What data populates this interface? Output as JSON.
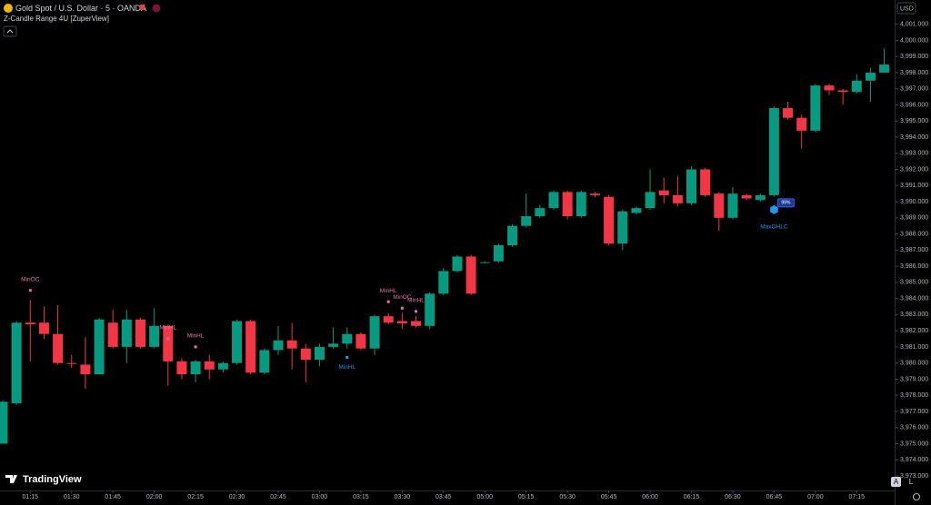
{
  "chart_data": {
    "type": "candlestick",
    "title": "Gold Spot / U.S. Dollar · 5 · OANDA",
    "subtitle": "Z-Candle Range 4U [ZuperView]",
    "currency": "USD",
    "brand": "TradingView",
    "scale_buttons": [
      "A",
      "L"
    ],
    "up_color": "#089981",
    "down_color": "#f23645",
    "categories": [
      null,
      null,
      "01:15",
      null,
      null,
      "01:30",
      null,
      null,
      "01:45",
      null,
      null,
      "02:00",
      null,
      null,
      "02:15",
      null,
      null,
      "02:30",
      null,
      null,
      "02:45",
      null,
      null,
      "03:00",
      null,
      null,
      "03:15",
      null,
      null,
      "03:30",
      null,
      null,
      "03:45",
      null,
      null,
      "05:00",
      null,
      null,
      "05:15",
      null,
      null,
      "05:30",
      null,
      null,
      "05:45",
      null,
      null,
      "06:00",
      null,
      null,
      "06:15",
      null,
      null,
      "06:30",
      null,
      null,
      "06:45",
      null,
      null,
      "07:00",
      null,
      null,
      "07:15",
      null,
      null
    ],
    "open": [
      3975.0,
      3977.5,
      3982.5,
      3982.5,
      3981.8,
      3980.0,
      3979.9,
      3979.3,
      3982.5,
      3981.0,
      3982.7,
      3981.0,
      3982.3,
      3980.1,
      3979.3,
      3980.1,
      3979.6,
      3980.0,
      3982.6,
      3979.4,
      3980.8,
      3981.4,
      3980.9,
      3980.2,
      3981.0,
      3981.2,
      3981.8,
      3980.9,
      3982.9,
      3982.6,
      3982.6,
      3982.3,
      3984.3,
      3985.7,
      3986.6,
      3986.2,
      3986.3,
      3987.3,
      3988.5,
      3989.1,
      3989.6,
      3990.6,
      3989.1,
      3990.5,
      3990.3,
      3987.4,
      3989.3,
      3989.6,
      3990.7,
      3990.4,
      3989.9,
      3992.0,
      3990.5,
      3989.0,
      3990.4,
      3990.1,
      3990.4,
      3995.8,
      3995.2,
      3994.4,
      3997.2,
      3996.9,
      3996.8,
      3997.5,
      3998.0
    ],
    "high": [
      3977.7,
      3982.6,
      3983.9,
      3983.5,
      3983.6,
      3980.5,
      3981.6,
      3982.8,
      3983.3,
      3983.3,
      3982.8,
      3983.4,
      3982.4,
      3980.3,
      3980.2,
      3980.5,
      3980.1,
      3982.7,
      3982.7,
      3980.9,
      3982.3,
      3982.5,
      3981.2,
      3981.2,
      3982.2,
      3982.2,
      3981.9,
      3983.0,
      3983.1,
      3983.1,
      3982.9,
      3984.4,
      3985.9,
      3986.7,
      3986.7,
      3986.3,
      3987.4,
      3988.6,
      3990.5,
      3989.8,
      3990.7,
      3990.7,
      3990.7,
      3990.6,
      3990.4,
      3989.5,
      3989.7,
      3992.0,
      3991.5,
      3991.6,
      3992.2,
      3992.1,
      3990.6,
      3990.9,
      3990.5,
      3990.5,
      3995.9,
      3996.2,
      3995.4,
      3997.3,
      3997.3,
      3997.0,
      3997.9,
      3998.3,
      3999.5
    ],
    "low": [
      3975.0,
      3977.4,
      3980.1,
      3981.5,
      3979.9,
      3979.7,
      3978.4,
      3979.3,
      3980.9,
      3980.0,
      3980.9,
      3980.9,
      3978.6,
      3979.0,
      3978.8,
      3979.0,
      3979.4,
      3979.9,
      3979.3,
      3979.3,
      3980.5,
      3979.6,
      3978.8,
      3979.8,
      3980.9,
      3980.9,
      3980.8,
      3980.5,
      3982.4,
      3982.1,
      3982.2,
      3982.1,
      3984.2,
      3985.6,
      3984.2,
      3986.2,
      3986.2,
      3987.2,
      3988.4,
      3989.0,
      3989.5,
      3988.9,
      3989.0,
      3990.3,
      3987.3,
      3987.0,
      3989.2,
      3989.5,
      3989.9,
      3989.7,
      3989.8,
      3990.3,
      3988.2,
      3988.9,
      3990.1,
      3990.0,
      3990.3,
      3995.1,
      3993.3,
      3994.3,
      3996.6,
      3996.0,
      3996.7,
      3996.2,
      3998.0
    ],
    "close": [
      3977.6,
      3982.5,
      3982.4,
      3981.8,
      3980.0,
      3979.95,
      3979.3,
      3982.7,
      3981.0,
      3982.7,
      3981.0,
      3982.3,
      3980.1,
      3979.3,
      3980.1,
      3979.6,
      3980.0,
      3982.6,
      3979.4,
      3980.8,
      3981.4,
      3980.9,
      3980.2,
      3981.0,
      3981.2,
      3981.8,
      3980.9,
      3982.9,
      3982.5,
      3982.45,
      3982.3,
      3984.3,
      3985.7,
      3986.6,
      3984.3,
      3986.25,
      3987.3,
      3988.5,
      3989.1,
      3989.6,
      3990.6,
      3989.1,
      3990.6,
      3990.4,
      3987.4,
      3989.4,
      3989.6,
      3990.6,
      3990.4,
      3989.9,
      3992.0,
      3990.4,
      3989.0,
      3990.5,
      3990.2,
      3990.4,
      3995.8,
      3995.2,
      3994.4,
      3997.2,
      3996.9,
      3996.8,
      3997.5,
      3998.0,
      3998.5
    ],
    "ylim": [
      3972.1,
      4002.5
    ],
    "yticks": [
      {
        "value": 3973,
        "label": "3,973.000"
      },
      {
        "value": 3974,
        "label": "3,974.000"
      },
      {
        "value": 3975,
        "label": "3,975.000"
      },
      {
        "value": 3976,
        "label": "3,976.000"
      },
      {
        "value": 3977,
        "label": "3,977.000"
      },
      {
        "value": 3978,
        "label": "3,978.000"
      },
      {
        "value": 3979,
        "label": "3,979.000"
      },
      {
        "value": 3980,
        "label": "3,980.000"
      },
      {
        "value": 3981,
        "label": "3,981.000"
      },
      {
        "value": 3982,
        "label": "3,982.000"
      },
      {
        "value": 3983,
        "label": "3,983.000"
      },
      {
        "value": 3984,
        "label": "3,984.000"
      },
      {
        "value": 3985,
        "label": "3,985.000"
      },
      {
        "value": 3986,
        "label": "3,986.000"
      },
      {
        "value": 3987,
        "label": "3,987.000"
      },
      {
        "value": 3988,
        "label": "3,988.000"
      },
      {
        "value": 3989,
        "label": "3,989.000"
      },
      {
        "value": 3990,
        "label": "3,990.000"
      },
      {
        "value": 3991,
        "label": "3,991.000"
      },
      {
        "value": 3992,
        "label": "3,992.000"
      },
      {
        "value": 3993,
        "label": "3,993.000"
      },
      {
        "value": 3994,
        "label": "3,994.000"
      },
      {
        "value": 3995,
        "label": "3,995.000"
      },
      {
        "value": 3996,
        "label": "3,996.000"
      },
      {
        "value": 3997,
        "label": "3,997.000"
      },
      {
        "value": 3998,
        "label": "3,998.000"
      },
      {
        "value": 3999,
        "label": "3,999.000"
      },
      {
        "value": 4000,
        "label": "4,000.000"
      },
      {
        "value": 4001,
        "label": "4,001.000"
      }
    ],
    "annotations": [
      {
        "text": "MinOC",
        "candle": 2,
        "value": 3984.5,
        "color": "#f06fa8",
        "side": "above"
      },
      {
        "text": "MinHL",
        "candle": 12,
        "value": 3981.5,
        "color": "#f06fa8",
        "side": "above"
      },
      {
        "text": "MinHL",
        "candle": 14,
        "value": 3981.0,
        "color": "#f06fa8",
        "side": "above"
      },
      {
        "text": "MinHL",
        "candle": 25,
        "value": 3980.35,
        "color": "#2196f3",
        "side": "below"
      },
      {
        "text": "MinHL",
        "candle": 28,
        "value": 3983.8,
        "color": "#f06fa8",
        "side": "above"
      },
      {
        "text": "MinOC",
        "candle": 29,
        "value": 3983.4,
        "color": "#f06fa8",
        "side": "above"
      },
      {
        "text": "MinHL",
        "candle": 30,
        "value": 3983.2,
        "color": "#f06fa8",
        "side": "above"
      },
      {
        "text": "MaxOHLC",
        "candle": 56,
        "value": 3989.5,
        "color": "#2196f3",
        "side": "below",
        "badge": "99%"
      }
    ]
  }
}
